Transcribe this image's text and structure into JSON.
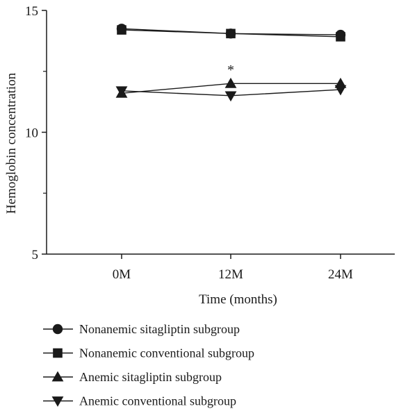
{
  "chart_data": {
    "type": "line",
    "title": "",
    "xlabel": "Time (months)",
    "ylabel": "Hemoglobin concentration",
    "categories": [
      "0M",
      "12M",
      "24M"
    ],
    "ylim": [
      5,
      15
    ],
    "yticks": [
      5,
      10,
      15
    ],
    "grid": false,
    "legend_position": "bottom",
    "line_color": "#1a1a1a",
    "series": [
      {
        "name": "Nonanemic sitagliptin subgroup",
        "marker": "circle",
        "values": [
          14.25,
          14.05,
          14.0
        ]
      },
      {
        "name": "Nonanemic conventional subgroup",
        "marker": "square",
        "values": [
          14.2,
          14.05,
          13.92
        ]
      },
      {
        "name": "Anemic sitagliptin subgroup",
        "marker": "triangle-up",
        "values": [
          11.6,
          12.0,
          12.0
        ]
      },
      {
        "name": "Anemic conventional subgroup",
        "marker": "triangle-down",
        "values": [
          11.7,
          11.5,
          11.75
        ]
      }
    ],
    "annotations": [
      {
        "text": "*",
        "category": "12M",
        "y": 12.6
      }
    ]
  }
}
